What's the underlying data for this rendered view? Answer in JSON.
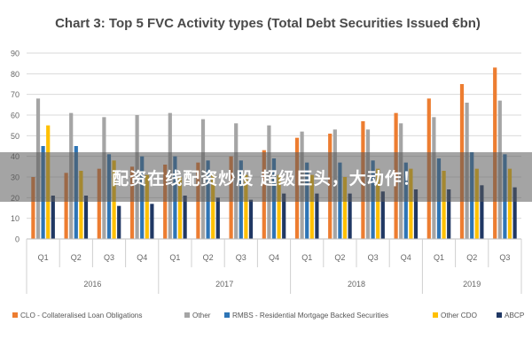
{
  "overlay": {
    "text": "配资在线配资炒股 超级巨头，大动作！"
  },
  "chart_data": {
    "type": "bar",
    "title": "Chart 3: Top 5 FVC Activity types (Total Debt Securities Issued €bn)",
    "xlabel": "",
    "ylabel": "",
    "ylim": [
      0,
      90
    ],
    "yticks": [
      0,
      10,
      20,
      30,
      40,
      50,
      60,
      70,
      80,
      90
    ],
    "grid": true,
    "legend_position": "bottom",
    "categories": [
      "Q1",
      "Q2",
      "Q3",
      "Q4",
      "Q1",
      "Q2",
      "Q3",
      "Q4",
      "Q1",
      "Q2",
      "Q3",
      "Q4",
      "Q1",
      "Q2",
      "Q3"
    ],
    "groups": [
      {
        "label": "2016",
        "count": 4
      },
      {
        "label": "2017",
        "count": 4
      },
      {
        "label": "2018",
        "count": 4
      },
      {
        "label": "2019",
        "count": 3
      }
    ],
    "series": [
      {
        "name": "CLO - Collateralised Loan Obligations",
        "color": "#ED7D31",
        "values": [
          30,
          32,
          34,
          35,
          36,
          37,
          40,
          43,
          49,
          51,
          57,
          61,
          68,
          75,
          83
        ]
      },
      {
        "name": "Other",
        "color": "#A5A5A5",
        "values": [
          68,
          61,
          59,
          60,
          61,
          58,
          56,
          55,
          52,
          53,
          53,
          56,
          59,
          66,
          67
        ]
      },
      {
        "name": "RMBS - Residential Mortgage Backed Securities",
        "color": "#2E75B6",
        "values": [
          45,
          45,
          41,
          40,
          40,
          38,
          38,
          39,
          37,
          37,
          38,
          37,
          39,
          42,
          41
        ]
      },
      {
        "name": "Other CDO",
        "color": "#FFC000",
        "values": [
          55,
          33,
          38,
          31,
          30,
          31,
          31,
          31,
          31,
          30,
          34,
          34,
          33,
          34,
          34
        ]
      },
      {
        "name": "ABCP",
        "color": "#203864",
        "values": [
          21,
          21,
          16,
          17,
          21,
          20,
          19,
          22,
          22,
          22,
          23,
          24,
          24,
          26,
          25
        ]
      }
    ]
  }
}
